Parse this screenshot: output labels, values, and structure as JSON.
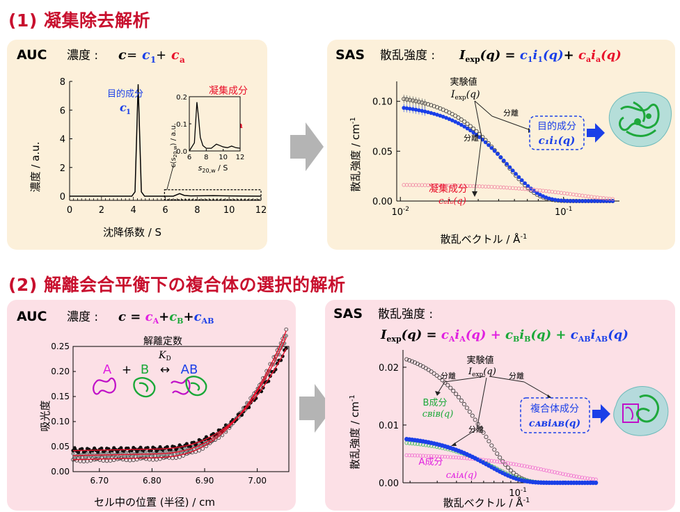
{
  "section1": {
    "title": "(1) 凝集除去解析",
    "auc": {
      "label": "AUC",
      "eq_prefix": "濃度 : ",
      "eq_c": "c",
      "eq_eq": " = ",
      "eq_c1": "c",
      "eq_c1_sub": "1",
      "eq_plus": " + ",
      "eq_ca": "c",
      "eq_ca_sub": "a",
      "ylabel": "濃度 / a.u.",
      "xlabel": "沈降係数 / S",
      "target_label": "目的成分",
      "target_sym": "c",
      "target_sub": "1",
      "agg_label": "凝集成分",
      "agg_sym": "c",
      "agg_sub": "a",
      "inset_xlabel": "s",
      "inset_xlabel_sub": "20,w",
      "inset_xlabel_unit": " / S",
      "inset_ylabel": "c(s",
      "inset_ylabel_sub": "20,w",
      "inset_ylabel_end": ") / a.u."
    },
    "sas": {
      "label": "SAS",
      "eq_prefix": "散乱強度 : ",
      "eq_I": "I",
      "eq_exp": "exp",
      "eq_q": "(q) = ",
      "eq_c1i1": "c",
      "eq_c1i1_sub": "1",
      "eq_i1": "i",
      "eq_i1_sub": "1",
      "eq_q2": "(q)",
      "eq_plus": "+ ",
      "eq_ca": "c",
      "eq_ca_sub": "a",
      "eq_ia": "i",
      "eq_ia_sub": "a",
      "eq_q3": "(q)",
      "ylabel": "散乱強度 / cm",
      "ylabel_sup": "-1",
      "xlabel": "散乱ベクトル / Å",
      "xlabel_sup": "-1",
      "exp_label": "実験値",
      "exp_sym": "I",
      "exp_sym_sub": "exp",
      "exp_sym_q": "(q)",
      "sep1": "分離",
      "sep2": "分離",
      "target_label": "目的成分",
      "target_sym": "c₁i₁(q)",
      "agg_label": "凝集成分",
      "agg_sym": "cₐiₐ(q)"
    }
  },
  "section2": {
    "title": "(2) 解離会合平衡下の複合体の選択的解析",
    "auc": {
      "label": "AUC",
      "eq_prefix": "濃度 : ",
      "eq_c": "c",
      "eq_eq": " = ",
      "eq_cA": "c",
      "eq_cA_sub": "A",
      "eq_cB": "c",
      "eq_cB_sub": "B",
      "eq_cAB": "c",
      "eq_cAB_sub": "AB",
      "eq_plus": "+",
      "ylabel": "吸光度",
      "xlabel": "セル中の位置 (半径) / cm",
      "kd_label": "解離定数",
      "kd_sym": "K",
      "kd_sub": "D",
      "react_A": "A",
      "react_plus": "+",
      "react_B": "B",
      "react_arrow": "↔",
      "react_AB": "AB"
    },
    "sas": {
      "label": "SAS",
      "eq_prefix": "散乱強度 :",
      "eq_full": "I",
      "eq_full_sub": "exp",
      "eq_full_q": "(q) = ",
      "eq_cAiA": "c",
      "eq_cAiA_sub": "A",
      "eq_iA": "i",
      "eq_iA_sub": "A",
      "eq_q1": "(q) + ",
      "eq_cBiB": "c",
      "eq_cBiB_sub": "B",
      "eq_iB": "i",
      "eq_iB_sub": "B",
      "eq_q2": "(q) + ",
      "eq_cABiAB": "c",
      "eq_cABiAB_sub": "AB",
      "eq_iAB": "i",
      "eq_iAB_sub": "AB",
      "eq_q3": "(q)",
      "ylabel": "散乱強度 / cm",
      "ylabel_sup": "-1",
      "xlabel": "散乱ベクトル / Å",
      "xlabel_sup": "-1",
      "exp_label": "実験値",
      "exp_sym": "I",
      "exp_sym_sub": "exp",
      "exp_sym_q": "(q)",
      "sep1": "分離",
      "sep2": "分離",
      "sep3": "分離",
      "b_label": "B成分",
      "b_sym": "cʙiʙ(q)",
      "a_label": "A成分",
      "a_sym": "cᴀiᴀ(q)",
      "complex_label": "複合体成分",
      "complex_sym": "cᴀʙiᴀʙ(q)"
    }
  },
  "colors": {
    "title_red": "#c8102e",
    "panel1": "#fcf0da",
    "panel2": "#fce0e6",
    "blue": "#1a3fe8",
    "red": "#e8102a",
    "magenta": "#e020e0",
    "green": "#1aa838",
    "arrow_gray": "#b4b4b4"
  },
  "chart_data": [
    {
      "type": "line",
      "id": "auc1",
      "xlim": [
        0,
        12
      ],
      "ylim": [
        0,
        8
      ],
      "xticks": [
        0,
        2,
        4,
        6,
        8,
        10,
        12
      ],
      "yticks": [
        0,
        2,
        4,
        6,
        8
      ],
      "series": [
        {
          "x": [
            0,
            3.9,
            4.1,
            4.3,
            4.5,
            4.7,
            6.5,
            6.9,
            7.2,
            7.6,
            9,
            10,
            12
          ],
          "y": [
            0,
            0,
            0.3,
            7.8,
            0.3,
            0,
            0,
            0.18,
            0.05,
            0.02,
            0.04,
            0.02,
            0
          ]
        }
      ]
    },
    {
      "type": "line",
      "id": "auc1-inset",
      "xlim": [
        6,
        12
      ],
      "ylim": [
        0,
        0.2
      ],
      "xticks": [
        6,
        8,
        10,
        12
      ],
      "yticks": [
        0.0,
        0.1,
        0.2
      ],
      "series": [
        {
          "x": [
            6,
            6.6,
            6.9,
            7.1,
            7.3,
            7.6,
            8.0,
            8.6,
            9.2,
            9.6,
            10,
            10.5,
            11,
            11.5,
            12
          ],
          "y": [
            0.0,
            0.03,
            0.18,
            0.12,
            0.05,
            0.02,
            0.01,
            0.01,
            0.025,
            0.02,
            0.015,
            0.012,
            0.018,
            0.012,
            0.01
          ]
        }
      ]
    },
    {
      "type": "scatter",
      "id": "sas1",
      "xscale": "log",
      "xlim": [
        0.0095,
        0.22
      ],
      "ylim": [
        0,
        0.12
      ],
      "yticks": [
        0.0,
        0.05,
        0.1
      ],
      "xticks": [
        0.01,
        0.1
      ],
      "series": [
        {
          "name": "exp",
          "qmin": 0.0105,
          "qmax": 0.2,
          "I0": 0.108,
          "rg": 0.0,
          "model": "guinier-like",
          "color": "#444"
        },
        {
          "name": "target",
          "qmin": 0.0105,
          "qmax": 0.2,
          "I0": 0.097,
          "model": "guinier-like",
          "color": "#1a3fe8"
        },
        {
          "name": "agg",
          "qmin": 0.0105,
          "qmax": 0.2,
          "I0": 0.016,
          "model": "decay",
          "color": "#f06090"
        }
      ]
    },
    {
      "type": "scatter",
      "id": "auc2",
      "xlim": [
        6.65,
        7.06
      ],
      "ylim": [
        0,
        0.25
      ],
      "xticks": [
        6.7,
        6.8,
        6.9,
        7.0
      ],
      "yticks": [
        0.0,
        0.05,
        0.1,
        0.15,
        0.2,
        0.25
      ],
      "series": [
        {
          "name": "black",
          "base": 0.042,
          "curv": 1.0
        },
        {
          "name": "gray",
          "base": 0.03,
          "curv": 1.15
        },
        {
          "name": "open",
          "base": 0.022,
          "curv": 1.2
        }
      ]
    },
    {
      "type": "scatter",
      "id": "sas2",
      "xscale": "log",
      "xlim": [
        0.018,
        0.33
      ],
      "ylim": [
        0,
        0.023
      ],
      "yticks": [
        0.0,
        0.01,
        0.02
      ],
      "xticks": [
        0.1
      ],
      "series": [
        {
          "name": "exp",
          "I0": 0.0225
        },
        {
          "name": "complex",
          "I0": 0.0082
        },
        {
          "name": "B",
          "I0": 0.0069
        },
        {
          "name": "A",
          "I0": 0.0046
        }
      ]
    }
  ]
}
